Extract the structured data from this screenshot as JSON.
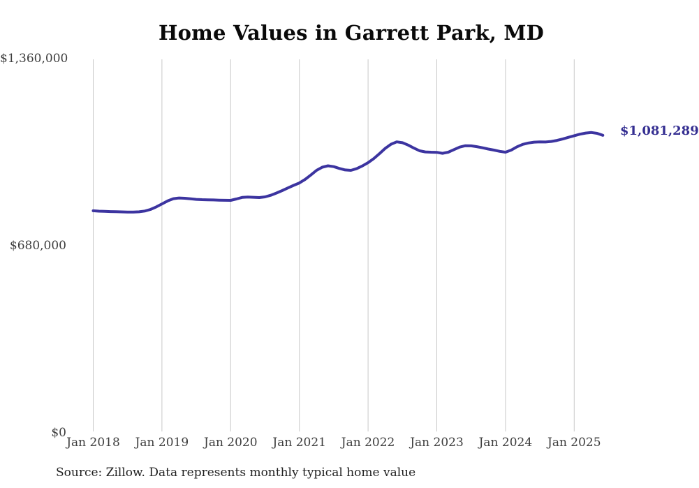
{
  "title": "Home Values in Garrett Park, MD",
  "source_note": "Source: Zillow. Data represents monthly typical home value",
  "colors": {
    "line": "#3c34a0",
    "end_label": "#342e91",
    "gridline": "#c9c9c9",
    "title": "#0a0a0a",
    "axis_label": "#3d3d3d",
    "background": "#ffffff"
  },
  "chart_data": {
    "type": "line",
    "title": "Home Values in Garrett Park, MD",
    "x_start_month": "Jan 2018",
    "x_end_month": "Jun 2025",
    "x_interval": "monthly",
    "x_tick_labels": [
      "Jan 2018",
      "Jan 2019",
      "Jan 2020",
      "Jan 2021",
      "Jan 2022",
      "Jan 2023",
      "Jan 2024",
      "Jan 2025"
    ],
    "x_tick_month_indices": [
      0,
      12,
      24,
      36,
      48,
      60,
      72,
      84
    ],
    "y_tick_labels": [
      "$0",
      "$680,000",
      "$1,360,000"
    ],
    "y_tick_values": [
      0,
      680000,
      1360000
    ],
    "ylim": [
      0,
      1360000
    ],
    "grid": "vertical-only",
    "legend": "none",
    "last_value": 1081289,
    "last_value_label": "$1,081,289",
    "values": [
      807000,
      805500,
      804800,
      804200,
      803600,
      803000,
      802600,
      802400,
      803200,
      806000,
      812000,
      821000,
      832000,
      843000,
      851000,
      853500,
      852500,
      850500,
      848500,
      847500,
      847000,
      846500,
      845800,
      845300,
      845000,
      850000,
      855500,
      857000,
      856000,
      855000,
      857500,
      863500,
      871500,
      880500,
      890000,
      899500,
      908000,
      921000,
      937000,
      954000,
      965500,
      970500,
      967500,
      961000,
      955500,
      954000,
      960000,
      970000,
      982000,
      997000,
      1015000,
      1034000,
      1049000,
      1057500,
      1054500,
      1046000,
      1035000,
      1025000,
      1021000,
      1020000,
      1019500,
      1016000,
      1020000,
      1029500,
      1038500,
      1043500,
      1043000,
      1040000,
      1036000,
      1031500,
      1027500,
      1023000,
      1020000,
      1027500,
      1039500,
      1048500,
      1053500,
      1056500,
      1057500,
      1057000,
      1059000,
      1063000,
      1068000,
      1074000,
      1080000,
      1085500,
      1089500,
      1091500,
      1088500,
      1081289
    ]
  }
}
